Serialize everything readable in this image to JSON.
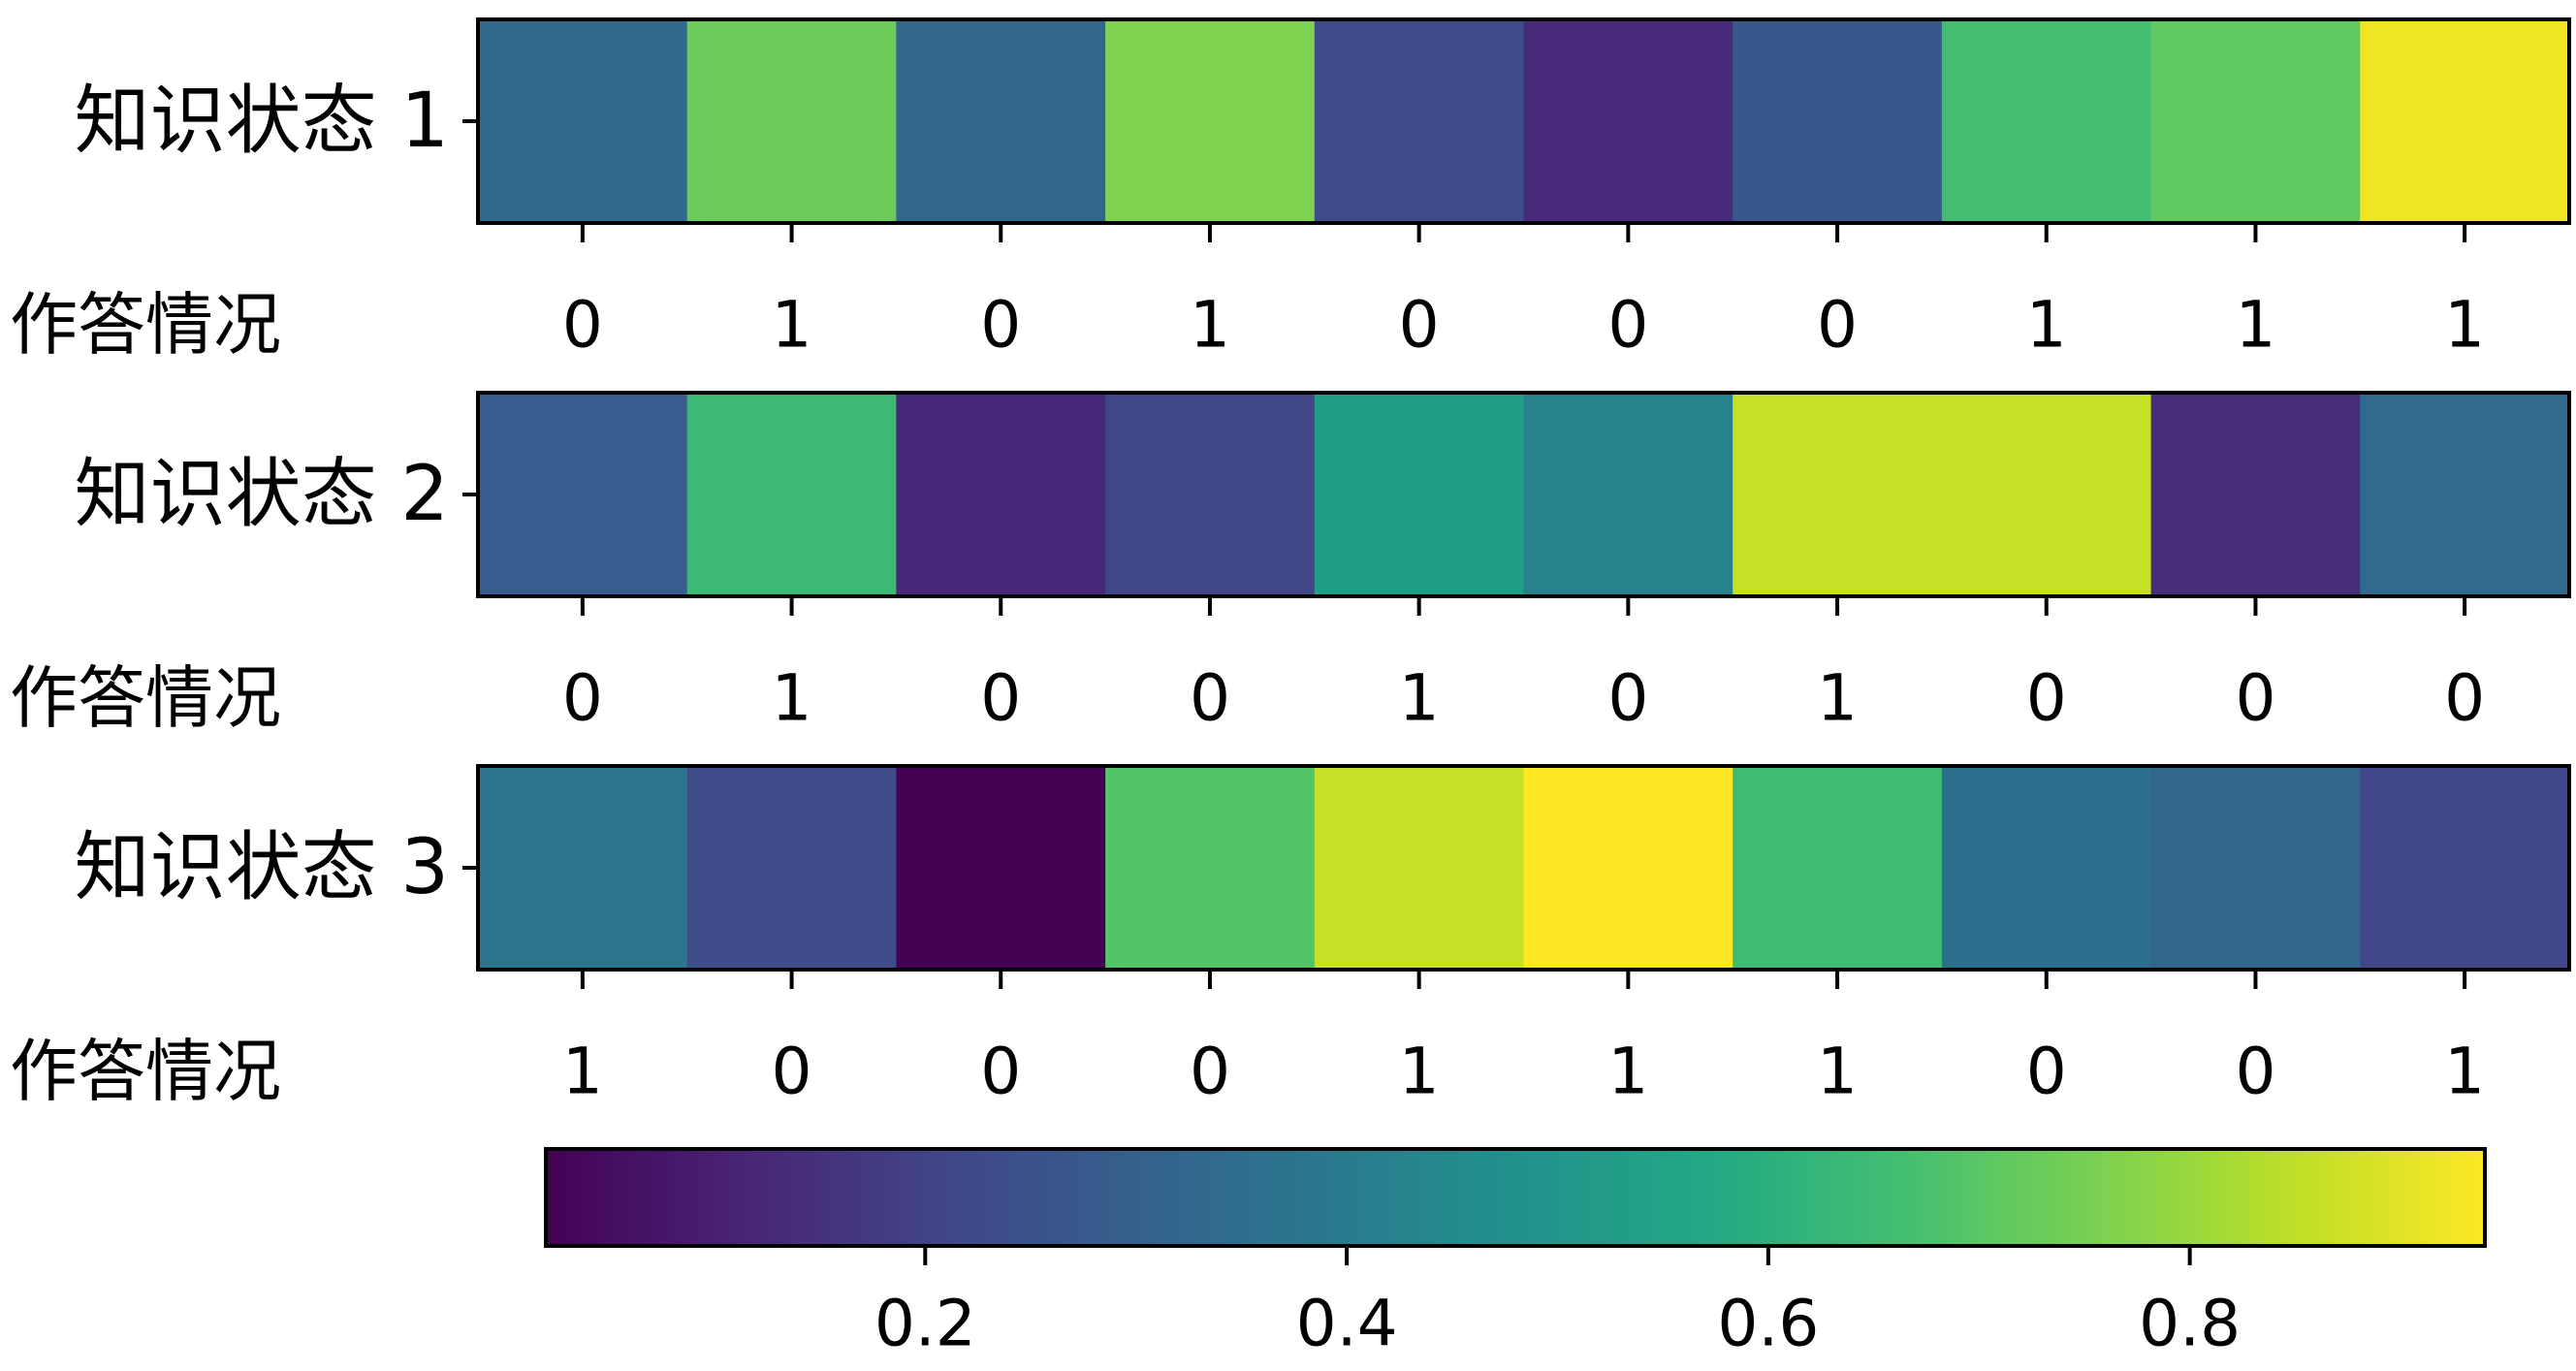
{
  "chart_data": {
    "type": "heatmap",
    "colormap": "viridis",
    "vmin": 0.02,
    "vmax": 0.94,
    "rows": [
      {
        "label": "知识状态 1",
        "answer_label": "作答情况",
        "values": [
          0.33,
          0.73,
          0.32,
          0.76,
          0.23,
          0.13,
          0.27,
          0.66,
          0.71,
          0.92
        ],
        "answers": [
          "0",
          "1",
          "0",
          "1",
          "0",
          "0",
          "0",
          "1",
          "1",
          "1"
        ]
      },
      {
        "label": "知识状态 2",
        "answer_label": "作答情况",
        "values": [
          0.29,
          0.64,
          0.12,
          0.21,
          0.53,
          0.43,
          0.86,
          0.86,
          0.14,
          0.34
        ],
        "answers": [
          "0",
          "1",
          "0",
          "0",
          "1",
          "0",
          "1",
          "0",
          "0",
          "0"
        ]
      },
      {
        "label": "知识状态 3",
        "answer_label": "作答情况",
        "values": [
          0.38,
          0.23,
          0.02,
          0.69,
          0.86,
          0.94,
          0.65,
          0.36,
          0.32,
          0.21
        ],
        "answers": [
          "1",
          "0",
          "0",
          "0",
          "1",
          "1",
          "1",
          "0",
          "0",
          "1"
        ]
      }
    ],
    "colorbar": {
      "ticks": [
        0.2,
        0.4,
        0.6,
        0.8
      ],
      "tick_labels": [
        "0.2",
        "0.4",
        "0.6",
        "0.8"
      ]
    }
  }
}
